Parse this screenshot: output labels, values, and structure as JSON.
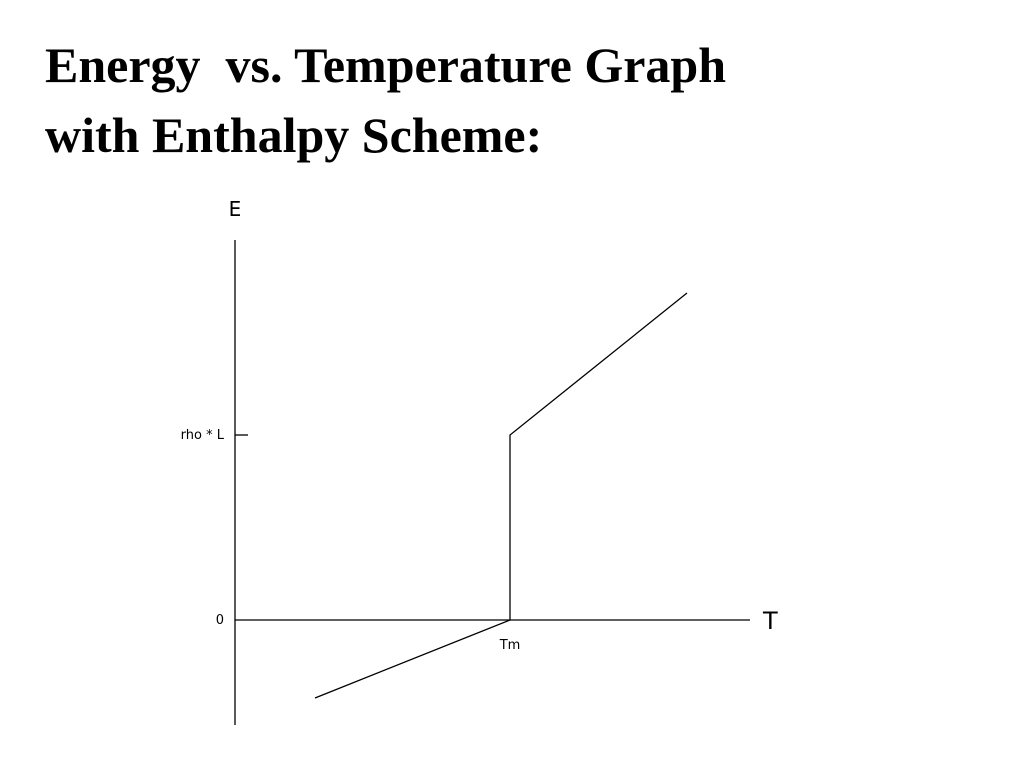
{
  "title": {
    "lines": [
      "Energy  vs. Temperature Graph",
      "with Enthalpy Scheme:"
    ]
  },
  "graph": {
    "y_axis_label": "E",
    "x_axis_label": "T",
    "y_ticks": [
      "rho * L",
      "0"
    ],
    "x_ticks": [
      "Tm"
    ]
  }
}
